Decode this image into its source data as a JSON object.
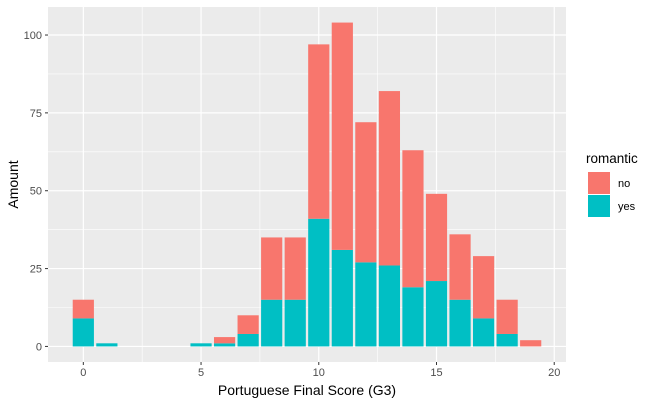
{
  "chart_data": {
    "type": "bar",
    "stacked": true,
    "xlabel": "Portuguese Final Score (G3)",
    "ylabel": "Amount",
    "x": [
      0,
      1,
      5,
      6,
      7,
      8,
      9,
      10,
      11,
      12,
      13,
      14,
      15,
      16,
      17,
      18,
      19
    ],
    "series": [
      {
        "name": "no",
        "color": "#F8766D",
        "values": [
          6,
          0,
          0,
          2,
          6,
          20,
          20,
          56,
          73,
          45,
          56,
          44,
          28,
          21,
          20,
          11,
          2
        ]
      },
      {
        "name": "yes",
        "color": "#00BFC4",
        "values": [
          9,
          1,
          1,
          1,
          4,
          15,
          15,
          41,
          31,
          27,
          26,
          19,
          21,
          15,
          9,
          4,
          0
        ]
      }
    ],
    "xlim": [
      -1.5,
      20.5
    ],
    "ylim": [
      -5,
      109
    ],
    "x_ticks": [
      "0",
      "5",
      "10",
      "15",
      "20"
    ],
    "y_ticks": [
      "0",
      "25",
      "50",
      "75",
      "100"
    ],
    "legend": {
      "title": "romantic",
      "position": "right",
      "entries": [
        "no",
        "yes"
      ]
    },
    "grid": true
  }
}
